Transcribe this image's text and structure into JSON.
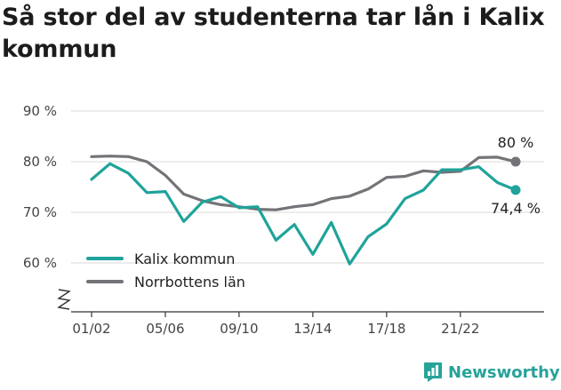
{
  "title": "Så stor del av studenterna tar lån i Kalix kommun",
  "brand": {
    "name": "Newsworthy",
    "color": "#27a39a",
    "icon": "bar-chart-speech-icon"
  },
  "chart_data": {
    "type": "line",
    "title": "Så stor del av studenterna tar lån i Kalix kommun",
    "xlabel": "",
    "ylabel": "",
    "ylim": [
      50,
      90
    ],
    "axis_break": true,
    "grid": true,
    "legend_position": "bottom-left",
    "yticks": [
      60,
      70,
      80,
      90
    ],
    "ytick_labels": [
      "60 %",
      "70 %",
      "80 %",
      "90 %"
    ],
    "x": [
      "01/02",
      "02/03",
      "03/04",
      "04/05",
      "05/06",
      "06/07",
      "07/08",
      "08/09",
      "09/10",
      "10/11",
      "11/12",
      "12/13",
      "13/14",
      "14/15",
      "15/16",
      "16/17",
      "17/18",
      "18/19",
      "19/20",
      "20/21",
      "21/22",
      "22/23",
      "23/24",
      "24/25"
    ],
    "xtick_labels": [
      "01/02",
      "05/06",
      "09/10",
      "13/14",
      "17/18",
      "21/22"
    ],
    "series": [
      {
        "name": "Kalix kommun",
        "color": "#1fa39a",
        "values": [
          76.5,
          79.6,
          77.7,
          73.9,
          74.1,
          68.2,
          72.0,
          73.1,
          70.9,
          71.1,
          64.5,
          67.6,
          61.7,
          68.0,
          59.8,
          65.2,
          67.7,
          72.7,
          74.4,
          78.4,
          78.4,
          79.0,
          75.9,
          74.4
        ],
        "end_label": "74,4 %"
      },
      {
        "name": "Norrbottens län",
        "color": "#737378",
        "values": [
          81.0,
          81.1,
          81.0,
          80.0,
          77.3,
          73.6,
          72.3,
          71.5,
          71.1,
          70.6,
          70.5,
          71.1,
          71.5,
          72.7,
          73.2,
          74.6,
          76.9,
          77.1,
          78.2,
          77.9,
          78.1,
          80.8,
          80.9,
          80.0
        ],
        "end_label": "80 %"
      }
    ]
  }
}
